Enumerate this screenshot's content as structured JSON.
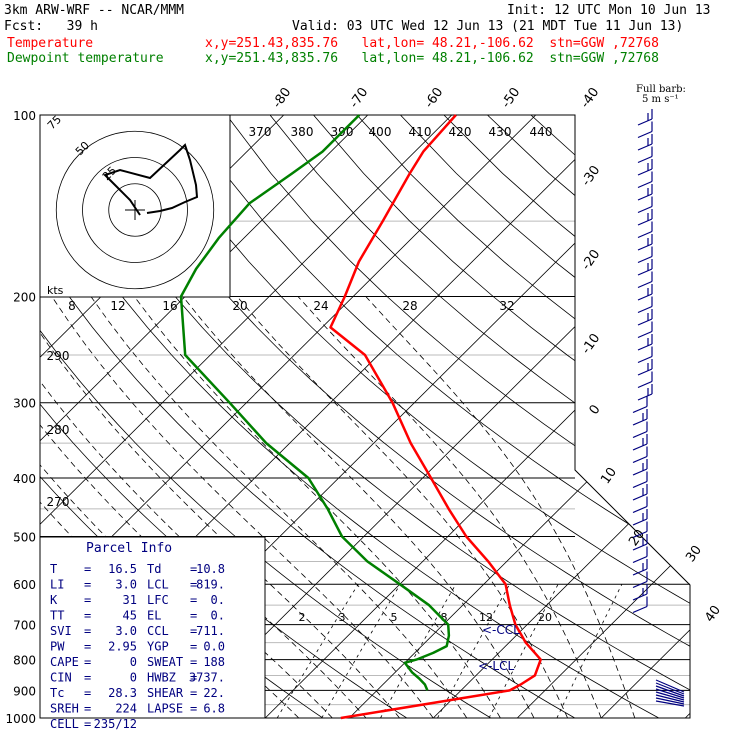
{
  "header": {
    "model": "3km ARW-WRF -- NCAR/MMM",
    "init": "Init: 12 UTC Mon 10 Jun 13",
    "fcst": "Fcst:   39 h",
    "valid": "Valid: 03 UTC Wed 12 Jun 13 (21 MDT Tue 11 Jun 13)",
    "temp_legend": "Temperature",
    "dew_legend": "Dewpoint temperature",
    "temp_coords": "x,y=251.43,835.76   lat,lon= 48.21,-106.62  stn=GGW ,72768",
    "dew_coords": "x,y=251.43,835.76   lat,lon= 48.21,-106.62  stn=GGW ,72768",
    "full_barb": "Full barb:",
    "full_barb_units": "5 m s⁻¹"
  },
  "colors": {
    "temperature": "#ff0000",
    "dewpoint": "#008000",
    "parcel": "#000080",
    "hodograph": "#000000"
  },
  "chart_data": {
    "type": "line",
    "title": "",
    "pressure_levels": [
      "100",
      "200",
      "300",
      "400",
      "500",
      "600",
      "700",
      "800",
      "900",
      "1000"
    ],
    "isotherm_labels": [
      "-80",
      "-70",
      "-60",
      "-50",
      "-40",
      "-30",
      "-20",
      "-10",
      "0",
      "10",
      "20",
      "30",
      "40"
    ],
    "theta_labels": [
      "370",
      "380",
      "390",
      "400",
      "410",
      "420",
      "430",
      "440",
      "290",
      "280",
      "270"
    ],
    "mixing_ratio_labels": [
      "2",
      "3",
      "5",
      "8",
      "12",
      "20"
    ],
    "hodo_labels": [
      "8",
      "12",
      "16",
      "20",
      "24",
      "28",
      "32"
    ],
    "hodo_ring_labels": [
      "75",
      "50",
      "25"
    ],
    "hodo_units": "kts",
    "ccl_label": "<-CCL",
    "lcl_label": "<-LCL",
    "series": [
      {
        "name": "Temperature",
        "points": [
          [
            1000,
            -1
          ],
          [
            900,
            15.8
          ],
          [
            880,
            16.4
          ],
          [
            850,
            17.0
          ],
          [
            800,
            15.8
          ],
          [
            750,
            12.0
          ],
          [
            700,
            8.6
          ],
          [
            650,
            5.6
          ],
          [
            600,
            2.6
          ],
          [
            550,
            -2.2
          ],
          [
            500,
            -7.8
          ],
          [
            450,
            -13.2
          ],
          [
            400,
            -19.0
          ],
          [
            350,
            -25.6
          ],
          [
            300,
            -32.6
          ],
          [
            250,
            -41.6
          ],
          [
            225,
            -49.0
          ],
          [
            200,
            -51.0
          ],
          [
            175,
            -53.5
          ],
          [
            150,
            -55.5
          ],
          [
            125,
            -58.0
          ],
          [
            115,
            -59.0
          ],
          [
            100,
            -59.5
          ]
        ]
      },
      {
        "name": "Dewpoint temperature",
        "points": [
          [
            900,
            6.0
          ],
          [
            880,
            5.0
          ],
          [
            860,
            3.6
          ],
          [
            840,
            2.0
          ],
          [
            810,
            0.0
          ],
          [
            800,
            1.0
          ],
          [
            780,
            2.2
          ],
          [
            760,
            3.0
          ],
          [
            730,
            2.0
          ],
          [
            700,
            0.6
          ],
          [
            650,
            -4.0
          ],
          [
            600,
            -10.0
          ],
          [
            550,
            -16.6
          ],
          [
            500,
            -22.6
          ],
          [
            450,
            -27.6
          ],
          [
            400,
            -33.6
          ],
          [
            350,
            -42.8
          ],
          [
            300,
            -52.0
          ],
          [
            250,
            -63.0
          ],
          [
            200,
            -70.5
          ],
          [
            180,
            -72.0
          ],
          [
            160,
            -73.0
          ],
          [
            140,
            -73.5
          ],
          [
            125,
            -72.0
          ],
          [
            115,
            -71.0
          ],
          [
            100,
            -71.0
          ]
        ]
      }
    ],
    "parcel_info": {
      "title": "Parcel Info",
      "rows": [
        [
          "T",
          "16.5",
          "Td",
          "10.8"
        ],
        [
          "LI",
          "3.0",
          "LCL",
          "819."
        ],
        [
          "K",
          "31",
          "LFC",
          "0."
        ],
        [
          "TT",
          "45",
          "EL",
          "0."
        ],
        [
          "SVI",
          "3.0",
          "CCL",
          "711."
        ],
        [
          "PW",
          "2.95",
          "YGP",
          "0.0"
        ],
        [
          "CAPE",
          "0",
          "SWEAT",
          "188"
        ],
        [
          "CIN",
          "0",
          "HWBZ",
          "3737."
        ],
        [
          "Tc",
          "28.3",
          "SHEAR",
          "22."
        ],
        [
          "SREH",
          "224",
          "LAPSE",
          "6.8"
        ],
        [
          "CELL",
          "235/12",
          "",
          ""
        ]
      ]
    }
  }
}
